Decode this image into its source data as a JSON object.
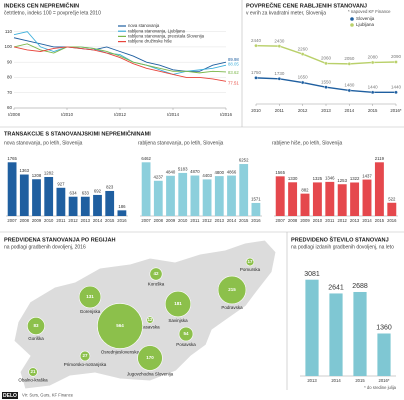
{
  "chart_data": [
    {
      "type": "line",
      "title": "INDEKS CEN NEPREMIČNIN",
      "subtitle": "četrtletno, indeks 100 = povprečje leta 2010",
      "categories": [
        "I/2008",
        null,
        null,
        null,
        "I/2010",
        null,
        null,
        null,
        "I/2012",
        null,
        null,
        null,
        "I/2014",
        null,
        null,
        null,
        "I/2016"
      ],
      "series": [
        {
          "name": "nova stanovanja",
          "color": "#1f5fa0",
          "values": [
            106,
            104,
            102,
            100,
            100,
            99,
            98,
            100,
            97,
            94,
            90,
            88,
            85,
            84,
            84,
            88,
            89.98
          ]
        },
        {
          "name": "rabljena stanovanja, Ljubljana",
          "color": "#3fb0dc",
          "values": [
            108,
            110,
            100,
            97,
            100,
            100,
            99,
            96,
            95,
            90,
            88,
            85,
            82,
            84,
            85,
            86,
            88.05
          ]
        },
        {
          "name": "rabljena stanovanja, preostala Slovenija",
          "color": "#7ab648",
          "values": [
            100,
            102,
            98,
            96,
            100,
            100,
            99,
            97,
            94,
            90,
            88,
            86,
            84,
            84,
            83,
            84,
            83.62
          ]
        },
        {
          "name": "rabljene družinske hiše",
          "color": "#e8453c",
          "values": [
            100,
            98,
            97,
            99,
            100,
            99,
            98,
            96,
            93,
            89,
            86,
            84,
            82,
            80,
            80,
            79,
            77.51
          ]
        }
      ],
      "ylim": [
        60,
        115
      ],
      "yticks": [
        60,
        70,
        80,
        90,
        100,
        110
      ],
      "grid": true,
      "end_labels": true,
      "legend": "top"
    },
    {
      "type": "line",
      "title": "POVPREČNE CENE RABLJENIH STANOVANJ",
      "subtitle": "v evrih za kvadratni meter, Slovenija",
      "note": "* napoved KF Finance",
      "categories": [
        "2010",
        "2011",
        "2012",
        "2013",
        "2014",
        "2015",
        "2016*"
      ],
      "series": [
        {
          "name": "Slovenija",
          "color": "#1f5fa0",
          "values": [
            1750,
            1730,
            1650,
            1550,
            1480,
            1440,
            1440
          ]
        },
        {
          "name": "Ljubljana",
          "color": "#b9d06a",
          "values": [
            2440,
            2430,
            2260,
            2060,
            2050,
            2080,
            2090
          ]
        }
      ],
      "point_labels": true,
      "legend": "top-right"
    },
    {
      "type": "bar",
      "subtitle": "nova stanovanja, po letih, Slovenija",
      "categories": [
        "2007",
        "2008",
        "2009",
        "2010",
        "2011",
        "2012",
        "2013",
        "2014",
        "2015",
        "2016"
      ],
      "values": [
        1765,
        1363,
        1208,
        1282,
        927,
        634,
        633,
        692,
        823,
        186
      ],
      "color": "#1f5fa0"
    },
    {
      "type": "bar",
      "subtitle": "rabljena stanovanja, po letih, Slovenija",
      "categories": [
        "2007",
        "2008",
        "2009",
        "2010",
        "2011",
        "2012",
        "2013",
        "2014",
        "2015",
        "2016"
      ],
      "values": [
        6462,
        4237,
        4840,
        5183,
        4870,
        4403,
        4800,
        4866,
        6252,
        1571
      ],
      "color": "#8ccfdc"
    },
    {
      "type": "bar",
      "subtitle": "rabljene hiše, po letih, Slovenija",
      "categories": [
        "2007",
        "2008",
        "2009",
        "2010",
        "2011",
        "2012",
        "2013",
        "2014",
        "2015",
        "2016"
      ],
      "values": [
        1565,
        1330,
        882,
        1325,
        1346,
        1253,
        1322,
        1437,
        2119,
        522
      ],
      "color": "#e5484d"
    },
    {
      "type": "bubble-map",
      "title": "PREDVIDENA STANOVANJA PO REGIJAH",
      "subtitle": "na podlagi gradbenih dovoljenj, 2016",
      "regions": [
        "Koroška",
        "Pomurska",
        "Podravska",
        "Gorenjska",
        "Savinjska",
        "Zasavska",
        "Posavska",
        "Osrednjeslovenska",
        "Goriška",
        "Jugovzhodna Slovenija",
        "Primorsko-notranjska",
        "Obalno-kraška"
      ],
      "values": [
        42,
        17,
        215,
        131,
        181,
        12,
        54,
        564,
        83,
        170,
        27,
        21
      ],
      "color": "#8cc04b"
    },
    {
      "type": "bar",
      "title": "PREDVIDENO ŠTEVILO STANOVANJ",
      "subtitle": "na podlagi izdanih gradbenih dovoljenj, na leto",
      "categories": [
        "2013",
        "2014",
        "2015",
        "2016*"
      ],
      "values": [
        3081,
        2641,
        2688,
        1360
      ],
      "color": "#7fc7d3",
      "note": "* do sredine julija"
    }
  ],
  "transactions_title": "TRANSAKCIJE S STANOVANJSKIMI NEPREMIČNINAMI",
  "footer": {
    "brand": "DELO",
    "source": "Vir: Surs, Gurs, KF Finance"
  }
}
